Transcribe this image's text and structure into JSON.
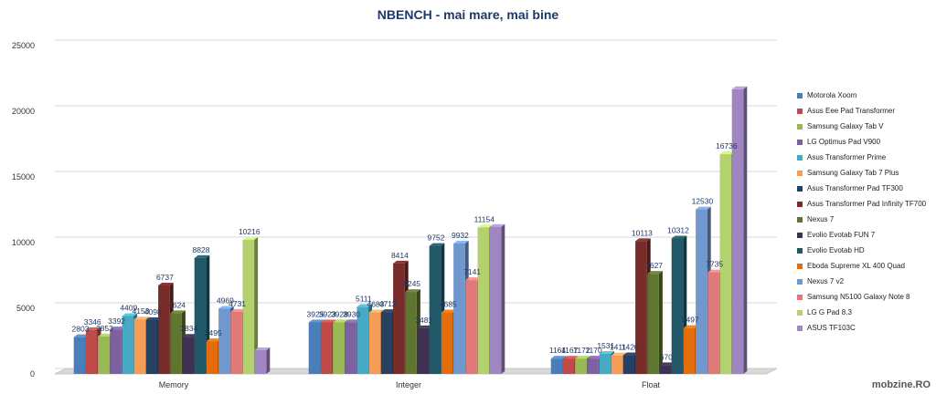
{
  "chart_data": {
    "type": "bar",
    "title": "NBENCH - mai mare, mai bine",
    "categories": [
      "Memory",
      "Integer",
      "Float"
    ],
    "ylim": [
      0,
      25000
    ],
    "yticks": [
      "0",
      "5000",
      "10000",
      "15000",
      "20000",
      "25000"
    ],
    "grid": true,
    "legend_position": "right",
    "series": [
      {
        "name": "Motorola Xoom",
        "color": "#4a7ebb",
        "values": [
          2803,
          3925,
          1164
        ]
      },
      {
        "name": "Asus Eee Pad Transformer",
        "color": "#be4b48",
        "values": [
          3346,
          3923,
          1167
        ]
      },
      {
        "name": "Samsung Galaxy Tab V",
        "color": "#98b954",
        "values": [
          2853,
          3928,
          1172
        ]
      },
      {
        "name": "LG Optimus Pad V900",
        "color": "#7d60a0",
        "values": [
          3392,
          3930,
          1170
        ]
      },
      {
        "name": "Asus Transformer Prime",
        "color": "#46aac5",
        "values": [
          4409,
          5111,
          1531
        ]
      },
      {
        "name": "Samsung Galaxy Tab 7 Plus",
        "color": "#f59d56",
        "values": [
          4153,
          4683,
          1411
        ]
      },
      {
        "name": "Asus Transformer Pad TF300",
        "color": "#254061",
        "values": [
          4098,
          4712,
          1420
        ]
      },
      {
        "name": "Asus Transformer Pad Infinity TF700",
        "color": "#772c2a",
        "values": [
          6737,
          8414,
          10113
        ]
      },
      {
        "name": "Nexus 7",
        "color": "#5f7530",
        "values": [
          4624,
          6245,
          7627
        ]
      },
      {
        "name": "Evolio Evotab FUN 7",
        "color": "#3f3151",
        "values": [
          2834,
          3481,
          670
        ]
      },
      {
        "name": "Evolio Evotab HD",
        "color": "#215968",
        "values": [
          8828,
          9752,
          10312
        ]
      },
      {
        "name": "Eboda Supreme XL 400 Quad",
        "color": "#e46c0a",
        "values": [
          2495,
          4685,
          3497
        ]
      },
      {
        "name": "Nexus 7 v2",
        "color": "#7198ce",
        "values": [
          4969,
          9932,
          12530
        ]
      },
      {
        "name": "Samsung N5100 Galaxy Note 8",
        "color": "#e07a78",
        "values": [
          4731,
          7141,
          7735
        ]
      },
      {
        "name": "LG G Pad 8.3",
        "color": "#b3d16e",
        "values": [
          10216,
          11154,
          16736
        ]
      },
      {
        "name": "ASUS TF103C",
        "color": "#9f85c2",
        "values": [
          1802,
          11200,
          21680
        ]
      }
    ],
    "data_labels": [
      [
        "2803",
        "3925",
        "1164"
      ],
      [
        "3346",
        "3923",
        "1167"
      ],
      [
        "2853",
        "3928",
        "1172"
      ],
      [
        "3392",
        "3930",
        "1170"
      ],
      [
        "4409",
        "5111",
        "1531"
      ],
      [
        "4153",
        "4683",
        "1411"
      ],
      [
        "4098",
        "4712",
        "1420"
      ],
      [
        "6737",
        "8414",
        "10113"
      ],
      [
        "4624",
        "6245",
        "7627"
      ],
      [
        "2834",
        "3481",
        "670"
      ],
      [
        "8828",
        "9752",
        "10312"
      ],
      [
        "2495",
        "4685",
        "3497"
      ],
      [
        "4969",
        "9932",
        "12530"
      ],
      [
        "4731",
        "7141",
        "7735"
      ],
      [
        "10216",
        "11154",
        "16736"
      ],
      [
        "",
        "",
        ""
      ]
    ]
  },
  "watermark": "mobzine.RO"
}
